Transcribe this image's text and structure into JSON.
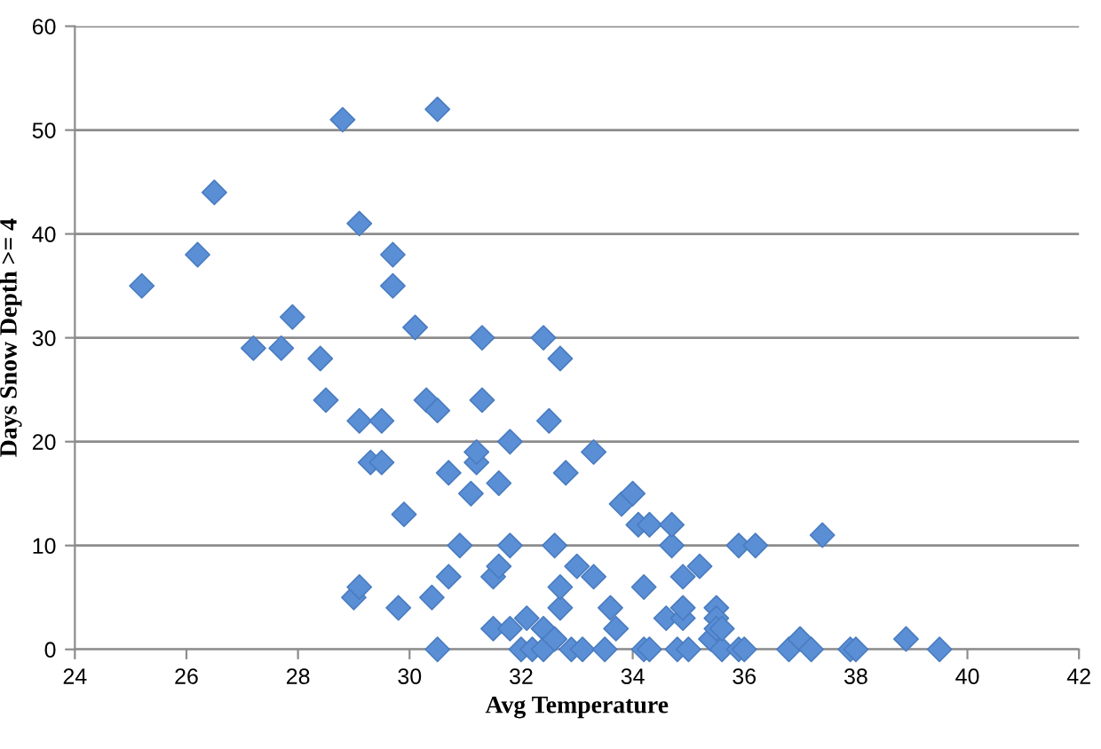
{
  "chart_data": {
    "type": "scatter",
    "xlabel": "Avg Temperature",
    "ylabel": "Days Snow Depth >= 4",
    "xlim": [
      24,
      42
    ],
    "xticks": [
      24,
      26,
      28,
      30,
      32,
      34,
      36,
      38,
      40,
      42
    ],
    "ylim": [
      0,
      60
    ],
    "yticks": [
      0,
      10,
      20,
      30,
      40,
      50,
      60
    ],
    "grid": "y",
    "marker": "diamond",
    "legend": false,
    "series": [
      {
        "color": "#5a8fd6",
        "x": [
          25.2,
          26.2,
          26.5,
          27.2,
          27.7,
          27.9,
          28.4,
          28.5,
          28.8,
          29.0,
          29.1,
          29.1,
          29.1,
          29.3,
          29.5,
          29.5,
          29.7,
          29.7,
          29.8,
          29.9,
          30.1,
          30.3,
          30.4,
          30.5,
          30.5,
          30.5,
          30.7,
          30.7,
          30.9,
          31.1,
          31.2,
          31.2,
          31.3,
          31.3,
          31.5,
          31.5,
          31.6,
          31.6,
          31.8,
          31.8,
          31.8,
          32.0,
          32.1,
          32.2,
          32.4,
          32.4,
          32.4,
          32.5,
          32.6,
          32.6,
          32.7,
          32.7,
          32.7,
          32.8,
          32.9,
          33.0,
          33.1,
          33.3,
          33.3,
          33.5,
          33.6,
          33.7,
          33.8,
          34.0,
          34.1,
          34.2,
          34.2,
          34.3,
          34.3,
          34.6,
          34.7,
          34.7,
          34.8,
          34.9,
          34.9,
          34.9,
          35.0,
          35.2,
          35.4,
          35.5,
          35.5,
          35.5,
          35.6,
          35.6,
          35.9,
          35.9,
          36.0,
          36.2,
          36.8,
          37.0,
          37.2,
          37.4,
          37.9,
          38.0,
          38.9,
          39.5
        ],
        "values": [
          35,
          38,
          44,
          29,
          29,
          32,
          28,
          24,
          51,
          5,
          6,
          41,
          22,
          18,
          18,
          22,
          38,
          35,
          4,
          13,
          31,
          24,
          5,
          23,
          52,
          0,
          17,
          7,
          10,
          15,
          18,
          19,
          30,
          24,
          7,
          2,
          8,
          16,
          20,
          10,
          2,
          0,
          3,
          0,
          30,
          2,
          0,
          22,
          10,
          1,
          28,
          4,
          6,
          17,
          0,
          8,
          0,
          7,
          19,
          0,
          4,
          2,
          14,
          15,
          12,
          0,
          6,
          12,
          0,
          3,
          10,
          12,
          0,
          7,
          3,
          4,
          0,
          8,
          1,
          4,
          3,
          2,
          0,
          2,
          10,
          0,
          0,
          10,
          0,
          1,
          0,
          11,
          0,
          0,
          1,
          0
        ]
      }
    ]
  }
}
